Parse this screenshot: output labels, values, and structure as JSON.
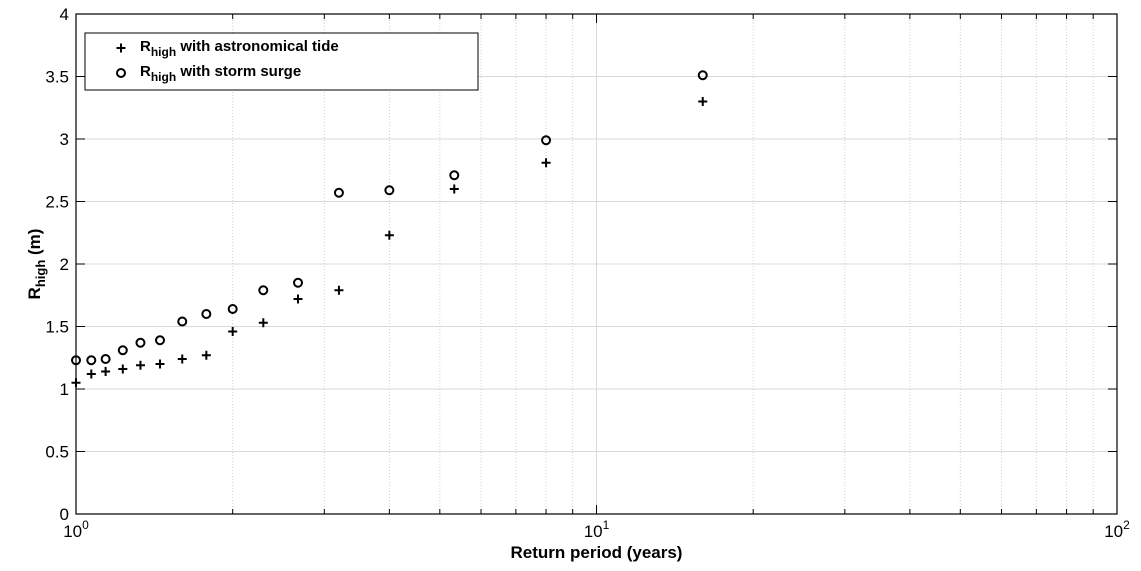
{
  "chart_data": {
    "type": "scatter",
    "xscale": "log",
    "xlim": [
      1,
      100
    ],
    "ylim": [
      0,
      4
    ],
    "xlabel": "Return period (years)",
    "ylabel": {
      "base": "R",
      "sub": "high",
      "suffix": " (m)"
    },
    "xticks": [
      1,
      10,
      100
    ],
    "xtick_labels": [
      {
        "base": "10",
        "exp": "0"
      },
      {
        "base": "10",
        "exp": "1"
      },
      {
        "base": "10",
        "exp": "2"
      }
    ],
    "yticks": [
      0,
      0.5,
      1,
      1.5,
      2,
      2.5,
      3,
      3.5,
      4
    ],
    "ytick_labels": [
      "0",
      "0.5",
      "1",
      "1.5",
      "2",
      "2.5",
      "3",
      "3.5",
      "4"
    ],
    "grid": true,
    "minor_grid": true,
    "legend": {
      "placement": "top-left"
    },
    "series": [
      {
        "name": {
          "base": "R",
          "sub": "high",
          "suffix": " with astronomical tide"
        },
        "marker": "plus",
        "color": "#000000",
        "points": [
          [
            1.0,
            1.05
          ],
          [
            1.07,
            1.12
          ],
          [
            1.14,
            1.14
          ],
          [
            1.23,
            1.16
          ],
          [
            1.33,
            1.19
          ],
          [
            1.45,
            1.2
          ],
          [
            1.6,
            1.24
          ],
          [
            1.78,
            1.27
          ],
          [
            2.0,
            1.46
          ],
          [
            2.29,
            1.53
          ],
          [
            2.67,
            1.72
          ],
          [
            3.2,
            1.79
          ],
          [
            4.0,
            2.23
          ],
          [
            5.33,
            2.6
          ],
          [
            8.0,
            2.81
          ],
          [
            16.0,
            3.3
          ]
        ]
      },
      {
        "name": {
          "base": "R",
          "sub": "high",
          "suffix": " with storm surge"
        },
        "marker": "circle",
        "color": "#000000",
        "points": [
          [
            1.0,
            1.23
          ],
          [
            1.07,
            1.23
          ],
          [
            1.14,
            1.24
          ],
          [
            1.23,
            1.31
          ],
          [
            1.33,
            1.37
          ],
          [
            1.45,
            1.39
          ],
          [
            1.6,
            1.54
          ],
          [
            1.78,
            1.6
          ],
          [
            2.0,
            1.64
          ],
          [
            2.29,
            1.79
          ],
          [
            2.67,
            1.85
          ],
          [
            3.2,
            2.57
          ],
          [
            4.0,
            2.59
          ],
          [
            5.33,
            2.71
          ],
          [
            8.0,
            2.99
          ],
          [
            16.0,
            3.51
          ]
        ]
      }
    ]
  }
}
